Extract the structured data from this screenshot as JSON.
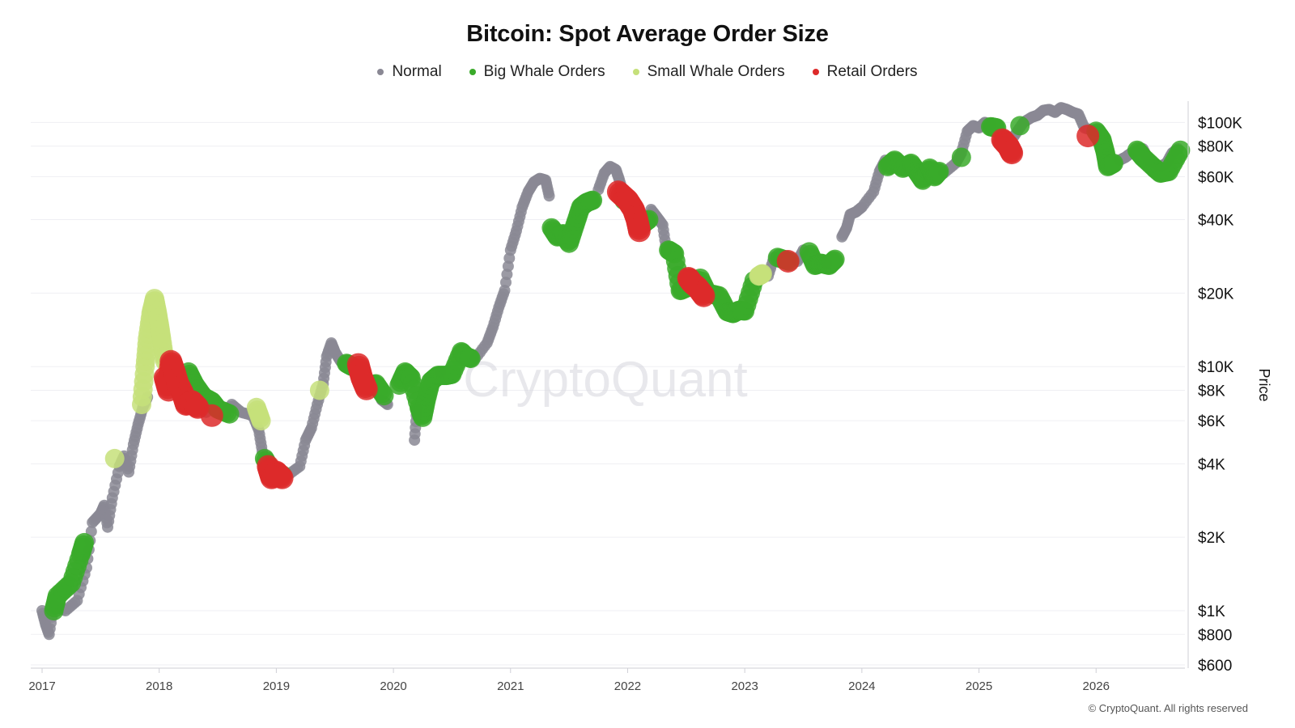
{
  "title": "Bitcoin: Spot Average Order Size",
  "legend": [
    {
      "label": "Normal",
      "color": "#8a8894"
    },
    {
      "label": "Big Whale Orders",
      "color": "#3aaa2a"
    },
    {
      "label": "Small Whale Orders",
      "color": "#c5e07a"
    },
    {
      "label": "Retail Orders",
      "color": "#dd2a2a"
    }
  ],
  "watermark": "CryptoQuant",
  "copyright": "© CryptoQuant. All rights reserved",
  "chart_data": {
    "type": "scatter",
    "title": "Bitcoin: Spot Average Order Size",
    "ylabel": "Price",
    "yscale": "log",
    "ylim": [
      600,
      130000
    ],
    "xlim": [
      2017.0,
      2026.8
    ],
    "x_ticks": [
      "2017",
      "2018",
      "2019",
      "2020",
      "2021",
      "2022",
      "2023",
      "2024",
      "2025",
      "2026"
    ],
    "y_ticks": [
      {
        "value": 100000,
        "label": "$100K"
      },
      {
        "value": 80000,
        "label": "$80K"
      },
      {
        "value": 60000,
        "label": "$60K"
      },
      {
        "value": 40000,
        "label": "$40K"
      },
      {
        "value": 20000,
        "label": "$20K"
      },
      {
        "value": 10000,
        "label": "$10K"
      },
      {
        "value": 8000,
        "label": "$8K"
      },
      {
        "value": 6000,
        "label": "$6K"
      },
      {
        "value": 4000,
        "label": "$4K"
      },
      {
        "value": 2000,
        "label": "$2K"
      },
      {
        "value": 1000,
        "label": "$1K"
      },
      {
        "value": 800,
        "label": "$800"
      },
      {
        "value": 600,
        "label": "$600"
      }
    ],
    "grid": true,
    "legend_position": "top-center",
    "series": [
      {
        "name": "Normal",
        "color": "#8a8894",
        "points": [
          [
            2017.0,
            1000
          ],
          [
            2017.03,
            880
          ],
          [
            2017.06,
            800
          ],
          [
            2017.1,
            1050
          ],
          [
            2017.2,
            1000
          ],
          [
            2017.3,
            1100
          ],
          [
            2017.38,
            1500
          ],
          [
            2017.43,
            2300
          ],
          [
            2017.5,
            2500
          ],
          [
            2017.53,
            2700
          ],
          [
            2017.56,
            2200
          ],
          [
            2017.6,
            2900
          ],
          [
            2017.66,
            3900
          ],
          [
            2017.7,
            4300
          ],
          [
            2017.74,
            3700
          ],
          [
            2017.78,
            4800
          ],
          [
            2017.82,
            5800
          ],
          [
            2017.86,
            6800
          ],
          [
            2017.9,
            7500
          ],
          [
            2018.05,
            11000
          ],
          [
            2018.4,
            6500
          ],
          [
            2018.55,
            6300
          ],
          [
            2018.62,
            7000
          ],
          [
            2018.7,
            6500
          ],
          [
            2018.8,
            6300
          ],
          [
            2018.85,
            5500
          ],
          [
            2018.88,
            4500
          ],
          [
            2019.1,
            3600
          ],
          [
            2019.2,
            3900
          ],
          [
            2019.25,
            5000
          ],
          [
            2019.3,
            5600
          ],
          [
            2019.35,
            7000
          ],
          [
            2019.4,
            8500
          ],
          [
            2019.43,
            11000
          ],
          [
            2019.47,
            12500
          ],
          [
            2019.5,
            11500
          ],
          [
            2019.55,
            10500
          ],
          [
            2019.6,
            10000
          ],
          [
            2019.9,
            7300
          ],
          [
            2019.95,
            7000
          ],
          [
            2020.18,
            5000
          ],
          [
            2020.2,
            6700
          ],
          [
            2020.4,
            9500
          ],
          [
            2020.7,
            10800
          ],
          [
            2020.8,
            12500
          ],
          [
            2020.85,
            14500
          ],
          [
            2020.9,
            17500
          ],
          [
            2020.95,
            20500
          ],
          [
            2021.0,
            30000
          ],
          [
            2021.05,
            36000
          ],
          [
            2021.1,
            45000
          ],
          [
            2021.15,
            52000
          ],
          [
            2021.2,
            57000
          ],
          [
            2021.25,
            59000
          ],
          [
            2021.3,
            58000
          ],
          [
            2021.33,
            50000
          ],
          [
            2021.75,
            53000
          ],
          [
            2021.8,
            62000
          ],
          [
            2021.85,
            66000
          ],
          [
            2021.9,
            64000
          ],
          [
            2021.93,
            58000
          ],
          [
            2021.97,
            50000
          ],
          [
            2022.2,
            44000
          ],
          [
            2022.25,
            41000
          ],
          [
            2022.3,
            38000
          ],
          [
            2022.33,
            30000
          ],
          [
            2022.7,
            20000
          ],
          [
            2022.75,
            19500
          ],
          [
            2023.2,
            23500
          ],
          [
            2023.25,
            28000
          ],
          [
            2023.45,
            27000
          ],
          [
            2023.5,
            30000
          ],
          [
            2023.7,
            26500
          ],
          [
            2023.83,
            34000
          ],
          [
            2023.87,
            37000
          ],
          [
            2023.9,
            42000
          ],
          [
            2023.95,
            43000
          ],
          [
            2024.0,
            45000
          ],
          [
            2024.1,
            52000
          ],
          [
            2024.15,
            63000
          ],
          [
            2024.2,
            70000
          ],
          [
            2024.7,
            62000
          ],
          [
            2024.8,
            68000
          ],
          [
            2024.85,
            75000
          ],
          [
            2024.9,
            92000
          ],
          [
            2024.95,
            97000
          ],
          [
            2025.0,
            95000
          ],
          [
            2025.05,
            100000
          ],
          [
            2025.1,
            98000
          ],
          [
            2025.3,
            88000
          ],
          [
            2025.38,
            100000
          ],
          [
            2025.45,
            105000
          ],
          [
            2025.5,
            107000
          ],
          [
            2025.55,
            112000
          ],
          [
            2025.6,
            113000
          ],
          [
            2025.65,
            110000
          ],
          [
            2025.7,
            115000
          ],
          [
            2025.75,
            113000
          ],
          [
            2025.8,
            110000
          ],
          [
            2025.85,
            108000
          ],
          [
            2025.9,
            95000
          ],
          [
            2026.0,
            92000
          ],
          [
            2026.2,
            70000
          ],
          [
            2026.25,
            72000
          ],
          [
            2026.3,
            75000
          ],
          [
            2026.4,
            78000
          ],
          [
            2026.45,
            70000
          ],
          [
            2026.55,
            66000
          ],
          [
            2026.6,
            68000
          ],
          [
            2026.65,
            75000
          ],
          [
            2026.7,
            78000
          ]
        ]
      },
      {
        "name": "Big Whale Orders",
        "color": "#3aaa2a",
        "points": [
          [
            2017.1,
            1000
          ],
          [
            2017.13,
            1150
          ],
          [
            2017.25,
            1300
          ],
          [
            2017.33,
            1700
          ],
          [
            2017.36,
            1900
          ],
          [
            2018.25,
            9500
          ],
          [
            2018.3,
            8500
          ],
          [
            2018.38,
            7500
          ],
          [
            2018.45,
            7200
          ],
          [
            2018.5,
            6700
          ],
          [
            2018.6,
            6400
          ],
          [
            2018.9,
            4200
          ],
          [
            2018.95,
            3800
          ],
          [
            2019.05,
            3600
          ],
          [
            2019.6,
            10300
          ],
          [
            2019.65,
            10000
          ],
          [
            2019.8,
            8300
          ],
          [
            2019.85,
            8500
          ],
          [
            2019.92,
            7600
          ],
          [
            2020.05,
            8400
          ],
          [
            2020.1,
            9500
          ],
          [
            2020.15,
            9000
          ],
          [
            2020.22,
            6800
          ],
          [
            2020.25,
            6200
          ],
          [
            2020.28,
            7300
          ],
          [
            2020.32,
            8700
          ],
          [
            2020.38,
            9200
          ],
          [
            2020.45,
            9200
          ],
          [
            2020.5,
            9300
          ],
          [
            2020.58,
            11500
          ],
          [
            2020.62,
            11000
          ],
          [
            2020.66,
            10800
          ],
          [
            2021.35,
            37000
          ],
          [
            2021.4,
            34000
          ],
          [
            2021.45,
            35000
          ],
          [
            2021.5,
            32000
          ],
          [
            2021.55,
            38000
          ],
          [
            2021.6,
            45000
          ],
          [
            2021.65,
            47000
          ],
          [
            2021.7,
            48000
          ],
          [
            2021.97,
            48000
          ],
          [
            2022.12,
            38000
          ],
          [
            2022.18,
            40000
          ],
          [
            2022.35,
            30000
          ],
          [
            2022.4,
            29000
          ],
          [
            2022.45,
            20500
          ],
          [
            2022.5,
            21000
          ],
          [
            2022.62,
            23000
          ],
          [
            2022.68,
            20000
          ],
          [
            2022.78,
            19500
          ],
          [
            2022.85,
            16800
          ],
          [
            2022.9,
            16500
          ],
          [
            2022.95,
            17000
          ],
          [
            2023.0,
            16900
          ],
          [
            2023.08,
            22500
          ],
          [
            2023.28,
            28000
          ],
          [
            2023.38,
            27000
          ],
          [
            2023.55,
            29500
          ],
          [
            2023.6,
            26000
          ],
          [
            2023.65,
            26500
          ],
          [
            2023.72,
            26000
          ],
          [
            2023.77,
            27500
          ],
          [
            2024.22,
            66000
          ],
          [
            2024.28,
            70000
          ],
          [
            2024.35,
            65000
          ],
          [
            2024.42,
            68000
          ],
          [
            2024.48,
            62000
          ],
          [
            2024.52,
            58000
          ],
          [
            2024.58,
            65000
          ],
          [
            2024.62,
            60000
          ],
          [
            2024.66,
            63000
          ],
          [
            2024.85,
            72000
          ],
          [
            2025.1,
            96000
          ],
          [
            2025.15,
            95000
          ],
          [
            2025.35,
            97000
          ],
          [
            2026.0,
            92000
          ],
          [
            2026.05,
            85000
          ],
          [
            2026.08,
            75000
          ],
          [
            2026.1,
            66000
          ],
          [
            2026.15,
            68000
          ],
          [
            2026.35,
            77000
          ],
          [
            2026.4,
            72000
          ],
          [
            2026.5,
            65000
          ],
          [
            2026.55,
            62000
          ],
          [
            2026.62,
            63000
          ],
          [
            2026.72,
            77000
          ]
        ]
      },
      {
        "name": "Small Whale Orders",
        "color": "#c5e07a",
        "points": [
          [
            2017.62,
            4200
          ],
          [
            2017.85,
            7000
          ],
          [
            2017.88,
            10000
          ],
          [
            2017.9,
            13000
          ],
          [
            2017.93,
            16500
          ],
          [
            2017.96,
            19000
          ],
          [
            2017.98,
            17000
          ],
          [
            2018.0,
            15000
          ],
          [
            2018.02,
            13000
          ],
          [
            2018.05,
            10500
          ],
          [
            2018.83,
            6800
          ],
          [
            2018.87,
            6000
          ],
          [
            2019.37,
            8000
          ],
          [
            2023.12,
            23500
          ],
          [
            2023.15,
            24000
          ]
        ]
      },
      {
        "name": "Retail Orders",
        "color": "#dd2a2a",
        "points": [
          [
            2018.05,
            9000
          ],
          [
            2018.08,
            8000
          ],
          [
            2018.1,
            10500
          ],
          [
            2018.13,
            9500
          ],
          [
            2018.16,
            8500
          ],
          [
            2018.2,
            7800
          ],
          [
            2018.23,
            7000
          ],
          [
            2018.28,
            7200
          ],
          [
            2018.33,
            6800
          ],
          [
            2018.45,
            6300
          ],
          [
            2018.93,
            3900
          ],
          [
            2018.96,
            3500
          ],
          [
            2019.0,
            3700
          ],
          [
            2019.05,
            3500
          ],
          [
            2019.7,
            10200
          ],
          [
            2019.73,
            9000
          ],
          [
            2019.77,
            8100
          ],
          [
            2021.92,
            52000
          ],
          [
            2022.0,
            48000
          ],
          [
            2022.05,
            44000
          ],
          [
            2022.08,
            40000
          ],
          [
            2022.1,
            36000
          ],
          [
            2022.52,
            23000
          ],
          [
            2022.55,
            22000
          ],
          [
            2022.6,
            21000
          ],
          [
            2022.65,
            19500
          ],
          [
            2023.37,
            27000
          ],
          [
            2025.2,
            85000
          ],
          [
            2025.25,
            80000
          ],
          [
            2025.28,
            75000
          ],
          [
            2025.93,
            88000
          ]
        ]
      }
    ]
  }
}
